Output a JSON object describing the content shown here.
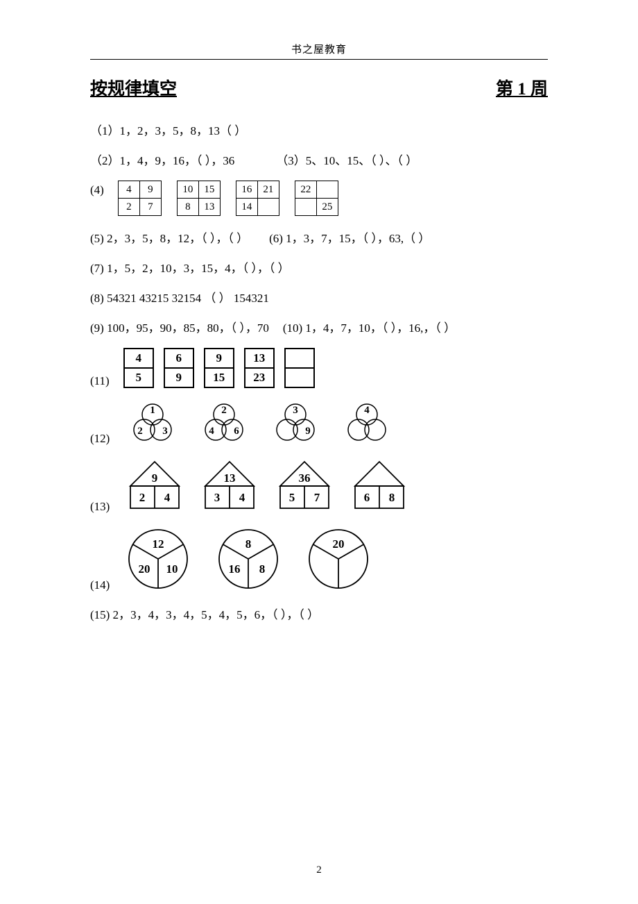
{
  "header": "书之屋教育",
  "title_left": "按规律填空",
  "title_right": "第 1 周",
  "q1": "（1）1，2，3，5，8，13（    ）",
  "q2": "（2）1，4，9，16，（    ），36",
  "q3": "（3）5、10、15、（  ）、（  ）",
  "q4_label": "(4)",
  "q4_grids": [
    [
      [
        "4",
        "9"
      ],
      [
        "2",
        "7"
      ]
    ],
    [
      [
        "10",
        "15"
      ],
      [
        "8",
        "13"
      ]
    ],
    [
      [
        "16",
        "21"
      ],
      [
        "14",
        ""
      ]
    ],
    [
      [
        "22",
        ""
      ],
      [
        "",
        "25"
      ]
    ]
  ],
  "q5": "(5) 2，3，5，8，12，（    ），（    ）",
  "q6": "(6) 1，3，7，15，（    ），63,（    ）",
  "q7": "(7) 1，5，2，10，3，15，4，（    ），（    ）",
  "q8": "(8) 54321 43215 32154 （          ） 154321",
  "q9": "(9) 100，95，90，85，80，（    ），70",
  "q10": "(10) 1，4，7，10，（    ），16,，（    ）",
  "q11_label": "(11)",
  "q11_pairs": [
    [
      "4",
      "5"
    ],
    [
      "6",
      "9"
    ],
    [
      "9",
      "15"
    ],
    [
      "13",
      "23"
    ],
    [
      "",
      ""
    ]
  ],
  "q12_label": "(12)",
  "q12_sets": [
    [
      "1",
      "2",
      "3"
    ],
    [
      "2",
      "4",
      "6"
    ],
    [
      "3",
      "",
      "9"
    ],
    [
      "4",
      "",
      ""
    ]
  ],
  "q13_label": "(13)",
  "q13_houses": [
    [
      "9",
      "2",
      "4"
    ],
    [
      "13",
      "3",
      "4"
    ],
    [
      "36",
      "5",
      "7"
    ],
    [
      "",
      "6",
      "8"
    ]
  ],
  "q14_label": "(14)",
  "q14_circles": [
    [
      "12",
      "20",
      "10"
    ],
    [
      "8",
      "16",
      "8"
    ],
    [
      "20",
      "",
      ""
    ]
  ],
  "q15": "(15)  2，3，4，3，4，5，4，5，6，（    ），（    ）",
  "page_number": "2",
  "colors": {
    "fg": "#000000",
    "bg": "#ffffff"
  }
}
